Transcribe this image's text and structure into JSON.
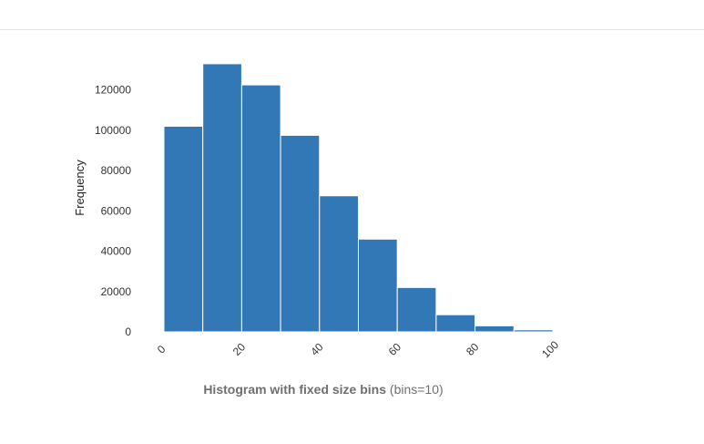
{
  "colors": {
    "bar_fill": "#3277b6",
    "bar_stroke": "#ffffff"
  },
  "caption": {
    "title": "Histogram with fixed size bins",
    "detail": "(bins=10)"
  },
  "chart_data": {
    "type": "bar",
    "title": "Histogram with fixed size bins",
    "subtitle": "(bins=10)",
    "xlabel": "",
    "ylabel": "Frequency",
    "bin_edges": [
      0,
      10,
      20,
      30,
      40,
      50,
      60,
      70,
      80,
      90,
      100
    ],
    "values": [
      102000,
      133000,
      122500,
      97500,
      67500,
      46000,
      22000,
      8500,
      3000,
      1000
    ],
    "xlim": [
      0,
      100
    ],
    "ylim": [
      0,
      135000
    ],
    "x_ticks": [
      0,
      20,
      40,
      60,
      80,
      100
    ],
    "x_tick_labels": [
      "0",
      "20",
      "40",
      "60",
      "80",
      "100"
    ],
    "y_ticks": [
      0,
      20000,
      40000,
      60000,
      80000,
      100000,
      120000
    ],
    "y_tick_labels": [
      "0",
      "20000",
      "40000",
      "60000",
      "80000",
      "100000",
      "120000"
    ],
    "grid": false,
    "legend": "none"
  }
}
